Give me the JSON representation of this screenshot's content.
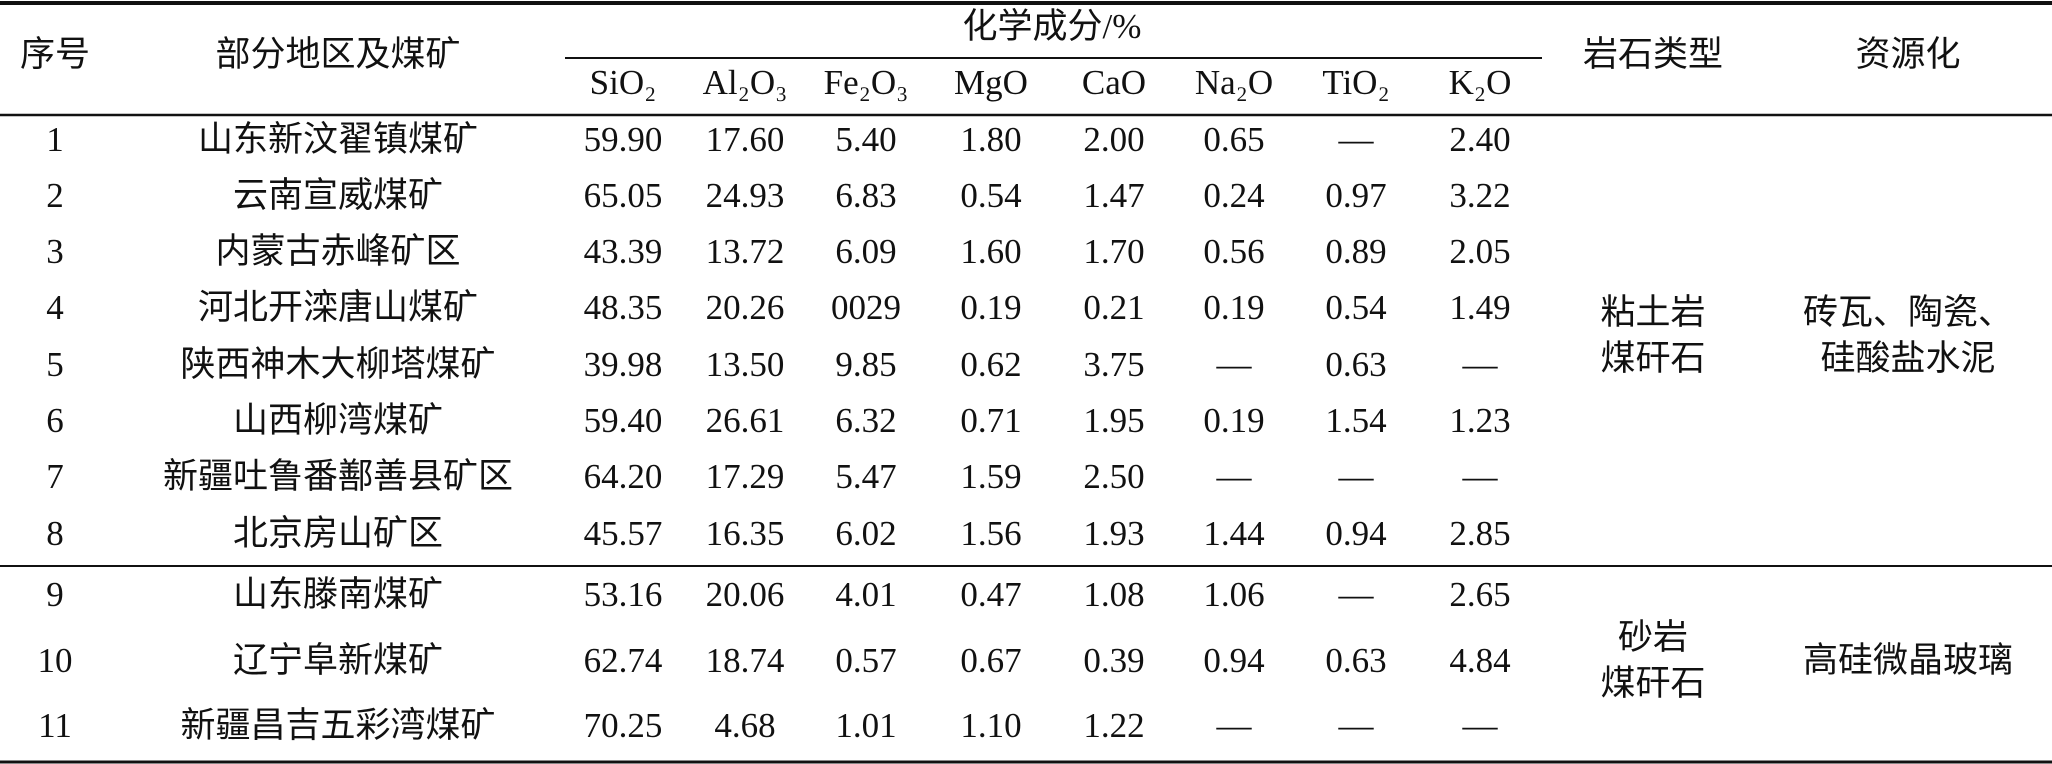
{
  "table": {
    "header": {
      "index": "序号",
      "region": "部分地区及煤矿",
      "composition": "化学成分/%",
      "components": [
        "SiO₂",
        "Al₂O₃",
        "Fe₂O₃",
        "MgO",
        "CaO",
        "Na₂O",
        "TiO₂",
        "K₂O"
      ],
      "rock_type": "岩石类型",
      "utilization": "资源化"
    },
    "rows": [
      [
        "1",
        "山东新汶翟镇煤矿",
        "59.90",
        "17.60",
        "5.40",
        "1.80",
        "2.00",
        "0.65",
        "—",
        "2.40"
      ],
      [
        "2",
        "云南宣威煤矿",
        "65.05",
        "24.93",
        "6.83",
        "0.54",
        "1.47",
        "0.24",
        "0.97",
        "3.22"
      ],
      [
        "3",
        "内蒙古赤峰矿区",
        "43.39",
        "13.72",
        "6.09",
        "1.60",
        "1.70",
        "0.56",
        "0.89",
        "2.05"
      ],
      [
        "4",
        "河北开滦唐山煤矿",
        "48.35",
        "20.26",
        "0029",
        "0.19",
        "0.21",
        "0.19",
        "0.54",
        "1.49"
      ],
      [
        "5",
        "陕西神木大柳塔煤矿",
        "39.98",
        "13.50",
        "9.85",
        "0.62",
        "3.75",
        "—",
        "0.63",
        "—"
      ],
      [
        "6",
        "山西柳湾煤矿",
        "59.40",
        "26.61",
        "6.32",
        "0.71",
        "1.95",
        "0.19",
        "1.54",
        "1.23"
      ],
      [
        "7",
        "新疆吐鲁番鄯善县矿区",
        "64.20",
        "17.29",
        "5.47",
        "1.59",
        "2.50",
        "—",
        "—",
        "—"
      ],
      [
        "8",
        "北京房山矿区",
        "45.57",
        "16.35",
        "6.02",
        "1.56",
        "1.93",
        "1.44",
        "0.94",
        "2.85"
      ],
      [
        "9",
        "山东滕南煤矿",
        "53.16",
        "20.06",
        "4.01",
        "0.47",
        "1.08",
        "1.06",
        "—",
        "2.65"
      ],
      [
        "10",
        "辽宁阜新煤矿",
        "62.74",
        "18.74",
        "0.57",
        "0.67",
        "0.39",
        "0.94",
        "0.63",
        "4.84"
      ],
      [
        "11",
        "新疆昌吉五彩湾煤矿",
        "70.25",
        "4.68",
        "1.01",
        "1.10",
        "1.22",
        "—",
        "—",
        "—"
      ]
    ],
    "groups": [
      {
        "rock_type": [
          "粘土岩",
          "煤矸石"
        ],
        "utilization": [
          "砖瓦、陶瓷、",
          "硅酸盐水泥"
        ]
      },
      {
        "rock_type": [
          "砂岩",
          "煤矸石"
        ],
        "utilization": [
          "高硅微晶玻璃"
        ]
      }
    ]
  }
}
